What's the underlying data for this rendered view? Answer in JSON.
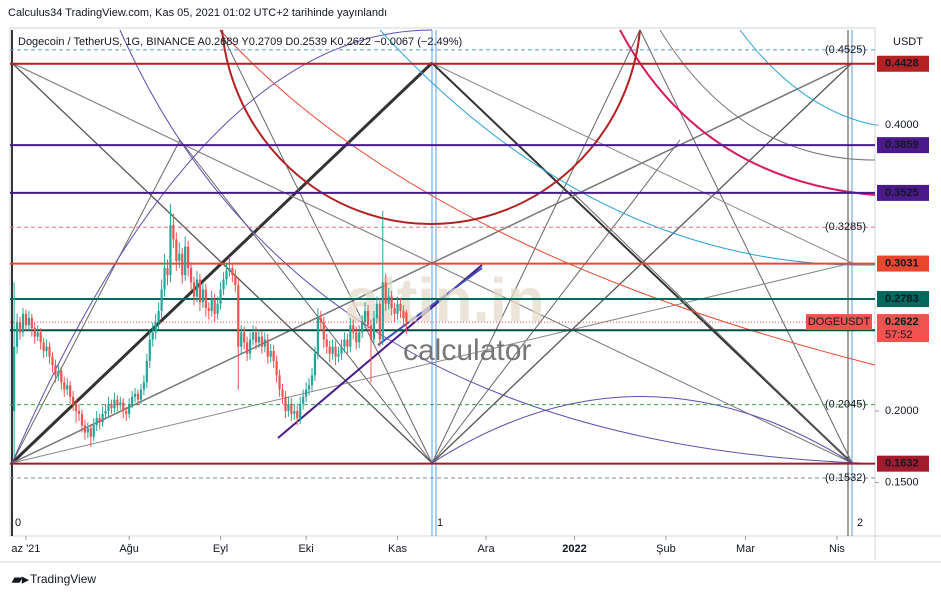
{
  "header": "Calculus34 TradingView.com, Kas 05, 2021 01:02 UTC+2 tarihinde yayınlandı",
  "footer": "TradingView",
  "watermark": [
    "altin.in",
    "calculator"
  ],
  "chart_data": {
    "type": "candlestick",
    "legend": "Dogecoin / TetherUS, 1G, BINANCE  A0.2689 Y0.2709 D0.2539 K0.2622 −0.0067 (−2.49%)",
    "currency": "USDT",
    "symbol": "DOGEUSDT",
    "last": 0.2622,
    "countdown": "57:52",
    "up_color": "#26a69a",
    "down_color": "#ef5350",
    "ylim": [
      0.1343,
      0.4664
    ],
    "yticks": [
      {
        "value": 0.4,
        "label": "0.4000"
      },
      {
        "value": 0.2,
        "label": "0.2000"
      },
      {
        "value": 0.15,
        "label": "0.1500"
      }
    ],
    "xlim": [
      -1.4,
      291.9
    ],
    "xticks": [
      {
        "value": 4,
        "label": "az '21"
      },
      {
        "value": 39,
        "label": "Ağu"
      },
      {
        "value": 70,
        "label": "Eyl"
      },
      {
        "value": 99,
        "label": "Eki"
      },
      {
        "value": 130,
        "label": "Kas"
      },
      {
        "value": 160,
        "label": "Ara"
      },
      {
        "value": 190,
        "label": "2022"
      },
      {
        "value": 221,
        "label": "Şub"
      },
      {
        "value": 248,
        "label": "Mar"
      },
      {
        "value": 279,
        "label": "Nis"
      }
    ],
    "price_lines": [
      {
        "value": 0.4428,
        "color": "#b22222"
      },
      {
        "value": 0.3859,
        "color": "#4a1a8a"
      },
      {
        "value": 0.3525,
        "color": "#4a1a8a"
      },
      {
        "value": 0.3031,
        "color": "#e8472e"
      },
      {
        "value": 0.2783,
        "color": "#00695c"
      },
      {
        "value": 0.2565,
        "color": "#004d40"
      },
      {
        "value": 0.1632,
        "color": "#a01c2c"
      }
    ],
    "levels": [
      {
        "value": 0.4525,
        "label": "(0.4525)",
        "color": "#5b9bd5"
      },
      {
        "value": 0.3285,
        "label": "(0.3285)",
        "color": "#e57373"
      },
      {
        "value": 0.2045,
        "label": "(0.2045)",
        "color": "#43a047"
      },
      {
        "value": 0.1532,
        "label": "(0.1532)",
        "color": "#78909c"
      }
    ],
    "markers": [
      "0",
      "1",
      "2"
    ],
    "x": [
      0,
      1,
      2,
      3,
      4,
      5,
      6,
      7,
      8,
      9,
      10,
      11,
      12,
      13,
      14,
      15,
      16,
      17,
      18,
      19,
      20,
      21,
      22,
      23,
      24,
      25,
      26,
      27,
      28,
      29,
      30,
      31,
      32,
      33,
      34,
      35,
      36,
      37,
      38,
      39,
      40,
      41,
      42,
      43,
      44,
      45,
      46,
      47,
      48,
      49,
      50,
      51,
      52,
      53,
      54,
      55,
      56,
      57,
      58,
      59,
      60,
      61,
      62,
      63,
      64,
      65,
      66,
      67,
      68,
      69,
      70,
      71,
      72,
      73,
      74,
      75,
      76,
      77,
      78,
      79,
      80,
      81,
      82,
      83,
      84,
      85,
      86,
      87,
      88,
      89,
      90,
      91,
      92,
      93,
      94,
      95,
      96,
      97,
      98,
      99,
      100,
      101,
      102,
      103,
      104,
      105,
      106,
      107,
      108,
      109,
      110,
      111,
      112,
      113,
      114,
      115,
      116,
      117,
      118,
      119,
      120,
      121,
      122,
      123,
      124,
      125,
      126,
      127,
      128,
      129,
      130,
      131,
      132,
      133
    ],
    "candles": [
      [
        0.2,
        0.29,
        0.168,
        0.245
      ],
      [
        0.245,
        0.268,
        0.24,
        0.262
      ],
      [
        0.262,
        0.266,
        0.25,
        0.255
      ],
      [
        0.255,
        0.272,
        0.252,
        0.268
      ],
      [
        0.268,
        0.271,
        0.256,
        0.26
      ],
      [
        0.26,
        0.27,
        0.256,
        0.265
      ],
      [
        0.265,
        0.268,
        0.252,
        0.258
      ],
      [
        0.258,
        0.262,
        0.247,
        0.252
      ],
      [
        0.252,
        0.26,
        0.249,
        0.255
      ],
      [
        0.255,
        0.258,
        0.243,
        0.248
      ],
      [
        0.248,
        0.251,
        0.237,
        0.242
      ],
      [
        0.242,
        0.25,
        0.238,
        0.245
      ],
      [
        0.245,
        0.248,
        0.233,
        0.238
      ],
      [
        0.238,
        0.241,
        0.227,
        0.232
      ],
      [
        0.232,
        0.236,
        0.22,
        0.225
      ],
      [
        0.225,
        0.233,
        0.221,
        0.228
      ],
      [
        0.228,
        0.231,
        0.215,
        0.22
      ],
      [
        0.22,
        0.224,
        0.21,
        0.215
      ],
      [
        0.215,
        0.223,
        0.211,
        0.218
      ],
      [
        0.218,
        0.221,
        0.205,
        0.21
      ],
      [
        0.21,
        0.214,
        0.2,
        0.205
      ],
      [
        0.205,
        0.208,
        0.192,
        0.2
      ],
      [
        0.2,
        0.205,
        0.193,
        0.198
      ],
      [
        0.198,
        0.201,
        0.185,
        0.19
      ],
      [
        0.19,
        0.194,
        0.18,
        0.185
      ],
      [
        0.185,
        0.192,
        0.181,
        0.188
      ],
      [
        0.188,
        0.191,
        0.175,
        0.182
      ],
      [
        0.182,
        0.195,
        0.179,
        0.19
      ],
      [
        0.19,
        0.2,
        0.186,
        0.195
      ],
      [
        0.195,
        0.198,
        0.187,
        0.192
      ],
      [
        0.192,
        0.203,
        0.189,
        0.198
      ],
      [
        0.198,
        0.205,
        0.194,
        0.2
      ],
      [
        0.2,
        0.21,
        0.196,
        0.205
      ],
      [
        0.205,
        0.208,
        0.198,
        0.202
      ],
      [
        0.202,
        0.213,
        0.199,
        0.208
      ],
      [
        0.208,
        0.211,
        0.2,
        0.204
      ],
      [
        0.204,
        0.21,
        0.201,
        0.206
      ],
      [
        0.206,
        0.209,
        0.195,
        0.2
      ],
      [
        0.2,
        0.203,
        0.193,
        0.198
      ],
      [
        0.198,
        0.209,
        0.195,
        0.205
      ],
      [
        0.205,
        0.214,
        0.202,
        0.21
      ],
      [
        0.21,
        0.216,
        0.206,
        0.212
      ],
      [
        0.212,
        0.215,
        0.204,
        0.208
      ],
      [
        0.208,
        0.219,
        0.205,
        0.215
      ],
      [
        0.215,
        0.225,
        0.211,
        0.22
      ],
      [
        0.22,
        0.24,
        0.216,
        0.235
      ],
      [
        0.235,
        0.256,
        0.23,
        0.25
      ],
      [
        0.25,
        0.262,
        0.245,
        0.255
      ],
      [
        0.255,
        0.268,
        0.25,
        0.262
      ],
      [
        0.262,
        0.276,
        0.257,
        0.27
      ],
      [
        0.27,
        0.292,
        0.265,
        0.285
      ],
      [
        0.285,
        0.31,
        0.28,
        0.3
      ],
      [
        0.3,
        0.306,
        0.288,
        0.295
      ],
      [
        0.295,
        0.345,
        0.29,
        0.33
      ],
      [
        0.33,
        0.338,
        0.314,
        0.32
      ],
      [
        0.32,
        0.325,
        0.298,
        0.305
      ],
      [
        0.305,
        0.318,
        0.3,
        0.31
      ],
      [
        0.31,
        0.314,
        0.289,
        0.295
      ],
      [
        0.295,
        0.322,
        0.291,
        0.315
      ],
      [
        0.315,
        0.319,
        0.294,
        0.3
      ],
      [
        0.3,
        0.304,
        0.284,
        0.29
      ],
      [
        0.29,
        0.294,
        0.274,
        0.28
      ],
      [
        0.28,
        0.298,
        0.276,
        0.292
      ],
      [
        0.292,
        0.296,
        0.27,
        0.276
      ],
      [
        0.276,
        0.29,
        0.272,
        0.285
      ],
      [
        0.285,
        0.289,
        0.266,
        0.272
      ],
      [
        0.272,
        0.276,
        0.264,
        0.27
      ],
      [
        0.27,
        0.284,
        0.266,
        0.278
      ],
      [
        0.278,
        0.282,
        0.262,
        0.268
      ],
      [
        0.268,
        0.28,
        0.264,
        0.275
      ],
      [
        0.275,
        0.29,
        0.271,
        0.285
      ],
      [
        0.285,
        0.297,
        0.281,
        0.292
      ],
      [
        0.292,
        0.303,
        0.288,
        0.298
      ],
      [
        0.298,
        0.308,
        0.294,
        0.3
      ],
      [
        0.3,
        0.304,
        0.29,
        0.295
      ],
      [
        0.295,
        0.299,
        0.283,
        0.288
      ],
      [
        0.288,
        0.292,
        0.215,
        0.245
      ],
      [
        0.245,
        0.26,
        0.24,
        0.255
      ],
      [
        0.255,
        0.259,
        0.243,
        0.248
      ],
      [
        0.248,
        0.252,
        0.235,
        0.24
      ],
      [
        0.24,
        0.255,
        0.236,
        0.25
      ],
      [
        0.25,
        0.26,
        0.246,
        0.255
      ],
      [
        0.255,
        0.259,
        0.243,
        0.248
      ],
      [
        0.248,
        0.257,
        0.244,
        0.252
      ],
      [
        0.252,
        0.256,
        0.24,
        0.245
      ],
      [
        0.245,
        0.255,
        0.241,
        0.25
      ],
      [
        0.25,
        0.254,
        0.233,
        0.238
      ],
      [
        0.238,
        0.247,
        0.234,
        0.242
      ],
      [
        0.242,
        0.246,
        0.23,
        0.235
      ],
      [
        0.235,
        0.239,
        0.22,
        0.225
      ],
      [
        0.225,
        0.229,
        0.21,
        0.215
      ],
      [
        0.215,
        0.219,
        0.205,
        0.21
      ],
      [
        0.21,
        0.214,
        0.195,
        0.2
      ],
      [
        0.2,
        0.21,
        0.196,
        0.205
      ],
      [
        0.205,
        0.209,
        0.193,
        0.198
      ],
      [
        0.198,
        0.205,
        0.194,
        0.2
      ],
      [
        0.2,
        0.204,
        0.19,
        0.195
      ],
      [
        0.195,
        0.21,
        0.191,
        0.205
      ],
      [
        0.205,
        0.215,
        0.201,
        0.21
      ],
      [
        0.21,
        0.22,
        0.206,
        0.215
      ],
      [
        0.215,
        0.223,
        0.211,
        0.218
      ],
      [
        0.218,
        0.23,
        0.214,
        0.225
      ],
      [
        0.225,
        0.245,
        0.221,
        0.24
      ],
      [
        0.24,
        0.272,
        0.236,
        0.265
      ],
      [
        0.265,
        0.27,
        0.256,
        0.262
      ],
      [
        0.262,
        0.266,
        0.244,
        0.25
      ],
      [
        0.25,
        0.254,
        0.24,
        0.245
      ],
      [
        0.245,
        0.249,
        0.234,
        0.24
      ],
      [
        0.24,
        0.25,
        0.236,
        0.245
      ],
      [
        0.245,
        0.249,
        0.232,
        0.238
      ],
      [
        0.238,
        0.245,
        0.234,
        0.24
      ],
      [
        0.24,
        0.25,
        0.236,
        0.245
      ],
      [
        0.245,
        0.255,
        0.241,
        0.25
      ],
      [
        0.25,
        0.254,
        0.24,
        0.245
      ],
      [
        0.245,
        0.265,
        0.241,
        0.26
      ],
      [
        0.26,
        0.264,
        0.25,
        0.255
      ],
      [
        0.255,
        0.259,
        0.243,
        0.248
      ],
      [
        0.248,
        0.26,
        0.244,
        0.255
      ],
      [
        0.255,
        0.267,
        0.251,
        0.262
      ],
      [
        0.262,
        0.276,
        0.258,
        0.27
      ],
      [
        0.27,
        0.274,
        0.255,
        0.26
      ],
      [
        0.26,
        0.264,
        0.22,
        0.25
      ],
      [
        0.25,
        0.27,
        0.246,
        0.265
      ],
      [
        0.265,
        0.28,
        0.261,
        0.275
      ],
      [
        0.275,
        0.279,
        0.245,
        0.25
      ],
      [
        0.25,
        0.34,
        0.246,
        0.29
      ],
      [
        0.29,
        0.296,
        0.27,
        0.275
      ],
      [
        0.275,
        0.286,
        0.271,
        0.28
      ],
      [
        0.28,
        0.284,
        0.267,
        0.272
      ],
      [
        0.272,
        0.276,
        0.262,
        0.268
      ],
      [
        0.268,
        0.28,
        0.264,
        0.275
      ],
      [
        0.275,
        0.279,
        0.265,
        0.27
      ],
      [
        0.27,
        0.274,
        0.26,
        0.265
      ],
      [
        0.2689,
        0.2709,
        0.2539,
        0.2622
      ]
    ]
  }
}
